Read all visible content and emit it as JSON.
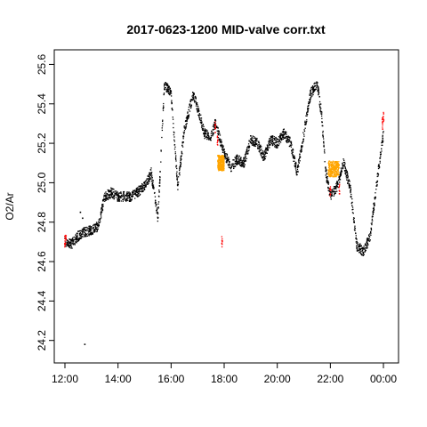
{
  "chart_data": {
    "type": "scatter",
    "title": "2017-0623-1200 MID-valve corr.txt",
    "xlabel": "",
    "ylabel": "O2/Ar",
    "xlim": [
      "12:00",
      "00:10"
    ],
    "ylim": [
      24.14,
      25.62
    ],
    "x_ticks": [
      "12:00",
      "14:00",
      "16:00",
      "18:00",
      "20:00",
      "22:00",
      "00:00"
    ],
    "y_ticks": [
      "24.2",
      "24.4",
      "24.6",
      "24.8",
      "25.0",
      "25.2",
      "25.4",
      "25.6"
    ],
    "grid": false,
    "legend": "none",
    "colors": {
      "main": "#000000",
      "flagged": "#ff0000",
      "calibration": "#ffa500"
    },
    "series": [
      {
        "color": "main",
        "spread": 0.025,
        "points": [
          [
            "12:00",
            24.7
          ],
          [
            "12:15",
            24.69
          ],
          [
            "12:30",
            24.73
          ],
          [
            "12:45",
            24.75
          ],
          [
            "13:00",
            24.76
          ],
          [
            "13:15",
            24.78
          ],
          [
            "13:30",
            24.93
          ],
          [
            "13:45",
            24.95
          ],
          [
            "14:00",
            24.93
          ],
          [
            "14:30",
            24.93
          ],
          [
            "15:00",
            24.98
          ],
          [
            "15:15",
            25.05
          ],
          [
            "15:30",
            24.82
          ],
          [
            "15:45",
            25.5
          ],
          [
            "16:00",
            25.45
          ],
          [
            "16:15",
            24.98
          ],
          [
            "16:30",
            25.27
          ],
          [
            "16:50",
            25.45
          ],
          [
            "17:00",
            25.38
          ],
          [
            "17:15",
            25.25
          ],
          [
            "17:30",
            25.23
          ],
          [
            "17:40",
            25.3
          ],
          [
            "18:00",
            25.15
          ],
          [
            "18:15",
            25.08
          ],
          [
            "18:30",
            25.12
          ],
          [
            "18:45",
            25.1
          ],
          [
            "19:00",
            25.22
          ],
          [
            "19:15",
            25.2
          ],
          [
            "19:30",
            25.13
          ],
          [
            "19:45",
            25.22
          ],
          [
            "20:00",
            25.2
          ],
          [
            "20:15",
            25.25
          ],
          [
            "20:30",
            25.2
          ],
          [
            "20:45",
            25.05
          ],
          [
            "21:00",
            25.25
          ],
          [
            "21:15",
            25.45
          ],
          [
            "21:30",
            25.5
          ],
          [
            "21:40",
            25.35
          ],
          [
            "21:50",
            25.05
          ],
          [
            "22:00",
            24.93
          ],
          [
            "22:15",
            24.98
          ],
          [
            "22:30",
            25.1
          ],
          [
            "22:45",
            24.97
          ],
          [
            "23:00",
            24.68
          ],
          [
            "23:15",
            24.65
          ],
          [
            "23:30",
            24.73
          ],
          [
            "23:45",
            25.0
          ],
          [
            "24:00",
            25.25
          ]
        ]
      },
      {
        "color": "calibration",
        "spread": 0.04,
        "points": [
          [
            "17:45",
            25.1
          ],
          [
            "18:00",
            25.1
          ],
          [
            "21:55",
            25.07
          ],
          [
            "22:20",
            25.07
          ]
        ]
      },
      {
        "color": "flagged",
        "spread": 0.03,
        "points": [
          [
            "12:00",
            24.7
          ],
          [
            "12:02",
            24.72
          ],
          [
            "17:40",
            25.28
          ],
          [
            "17:45",
            25.22
          ],
          [
            "17:55",
            24.7
          ],
          [
            "22:00",
            24.95
          ],
          [
            "22:20",
            24.97
          ],
          [
            "23:58",
            25.3
          ],
          [
            "24:00",
            25.33
          ]
        ]
      }
    ],
    "outliers": [
      [
        "12:45",
        24.18
      ],
      [
        "12:35",
        24.85
      ],
      [
        "12:40",
        24.82
      ]
    ]
  }
}
